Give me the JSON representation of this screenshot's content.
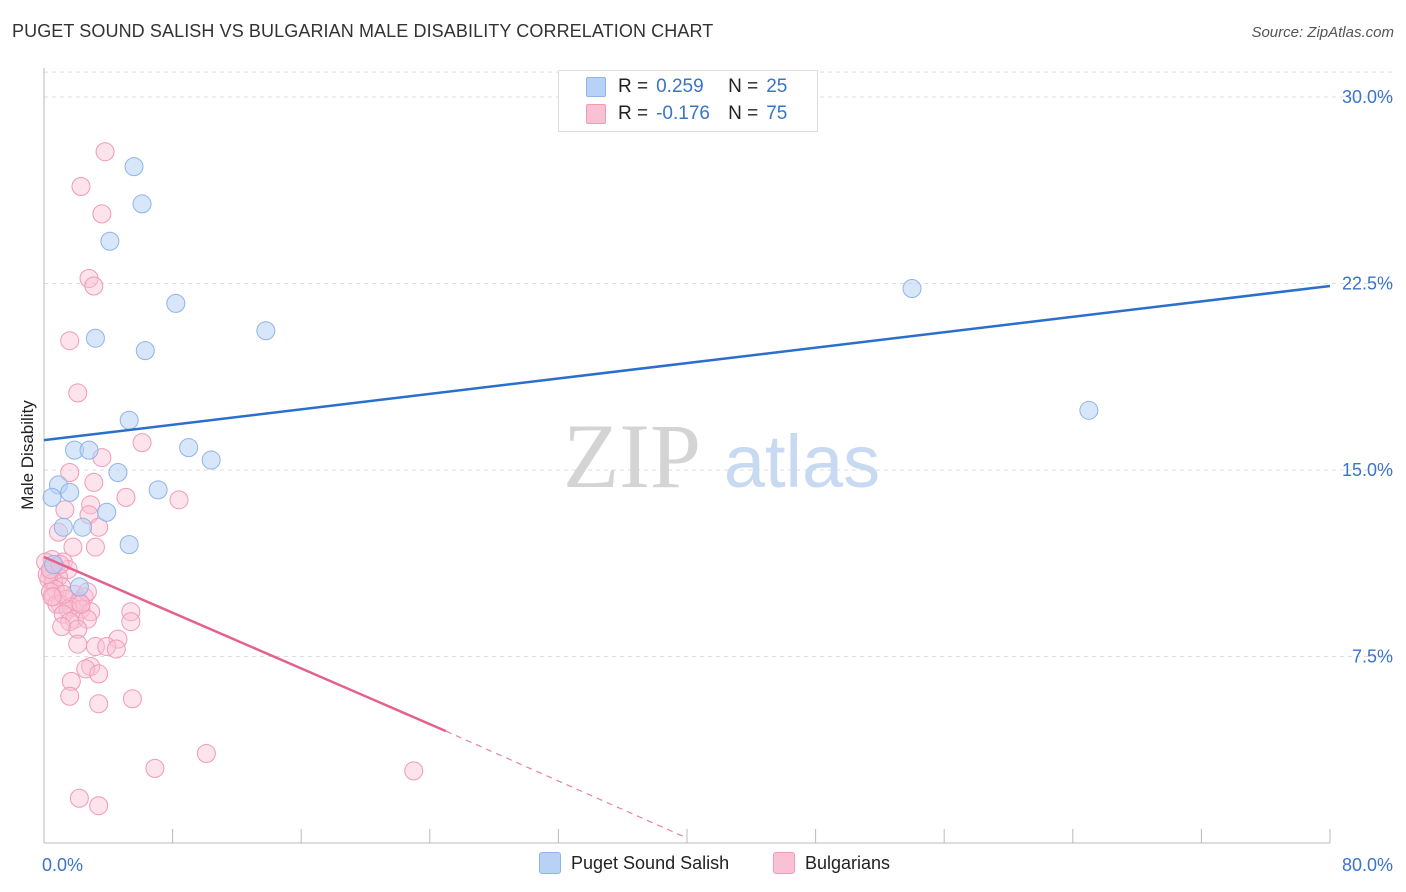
{
  "title": "PUGET SOUND SALISH VS BULGARIAN MALE DISABILITY CORRELATION CHART",
  "source": "Source: ZipAtlas.com",
  "watermark": {
    "zip": "ZIP",
    "atlas": "atlas"
  },
  "legend": {
    "rows": [
      {
        "r_label": "R =",
        "r_value": "0.259",
        "n_label": "N =",
        "n_value": "25"
      },
      {
        "r_label": "R =",
        "r_value": "-0.176",
        "n_label": "N =",
        "n_value": "75"
      }
    ]
  },
  "bottom_legend": [
    "Puget Sound Salish",
    "Bulgarians"
  ],
  "colors": {
    "blue_fill": "#b8d2f5",
    "blue_stroke": "#8fb4e6",
    "blue_line": "#2b6fcd",
    "pink_fill": "#f9c2d4",
    "pink_stroke": "#f09ab6",
    "pink_line": "#e4618e",
    "tick_text": "#3a74c9",
    "grid": "#dddddd"
  },
  "chart_data": {
    "type": "scatter",
    "title": "PUGET SOUND SALISH VS BULGARIAN MALE DISABILITY CORRELATION CHART",
    "xlabel": "",
    "ylabel": "Male Disability",
    "xlim": [
      0,
      80
    ],
    "ylim": [
      0,
      31
    ],
    "x_tick_labels": [
      "0.0%",
      "80.0%"
    ],
    "y_ticks": [
      7.5,
      15.0,
      22.5,
      30.0
    ],
    "y_tick_labels": [
      "7.5%",
      "15.0%",
      "22.5%",
      "30.0%"
    ],
    "series": [
      {
        "name": "Puget Sound Salish",
        "R": 0.259,
        "N": 25,
        "trend": {
          "x": [
            0,
            80
          ],
          "y": [
            16.2,
            22.4
          ]
        },
        "points": [
          [
            5.6,
            27.2
          ],
          [
            6.1,
            25.7
          ],
          [
            4.1,
            24.2
          ],
          [
            8.2,
            21.7
          ],
          [
            3.2,
            20.3
          ],
          [
            6.3,
            19.8
          ],
          [
            13.8,
            20.6
          ],
          [
            5.3,
            17.0
          ],
          [
            1.9,
            15.8
          ],
          [
            2.8,
            15.8
          ],
          [
            9.0,
            15.9
          ],
          [
            10.4,
            15.4
          ],
          [
            4.6,
            14.9
          ],
          [
            0.9,
            14.4
          ],
          [
            7.1,
            14.2
          ],
          [
            1.6,
            14.1
          ],
          [
            0.5,
            13.9
          ],
          [
            3.9,
            13.3
          ],
          [
            1.2,
            12.7
          ],
          [
            2.4,
            12.7
          ],
          [
            5.3,
            12.0
          ],
          [
            0.6,
            11.2
          ],
          [
            2.2,
            10.3
          ],
          [
            54.0,
            22.3
          ],
          [
            65.0,
            17.4
          ]
        ]
      },
      {
        "name": "Bulgarians",
        "R": -0.176,
        "N": 75,
        "trend": {
          "x": [
            0,
            25
          ],
          "y": [
            11.5,
            4.5
          ]
        },
        "trend_dashed": {
          "x": [
            25,
            40
          ],
          "y": [
            4.5,
            0.2
          ]
        },
        "points": [
          [
            3.8,
            27.8
          ],
          [
            2.3,
            26.4
          ],
          [
            3.6,
            25.3
          ],
          [
            2.8,
            22.7
          ],
          [
            3.1,
            22.4
          ],
          [
            1.6,
            20.2
          ],
          [
            2.1,
            18.1
          ],
          [
            6.1,
            16.1
          ],
          [
            3.6,
            15.5
          ],
          [
            1.6,
            14.9
          ],
          [
            3.1,
            14.5
          ],
          [
            5.1,
            13.9
          ],
          [
            8.4,
            13.8
          ],
          [
            2.9,
            13.6
          ],
          [
            1.3,
            13.4
          ],
          [
            2.8,
            13.2
          ],
          [
            3.4,
            12.7
          ],
          [
            0.9,
            12.5
          ],
          [
            1.8,
            11.9
          ],
          [
            3.2,
            11.9
          ],
          [
            0.5,
            11.4
          ],
          [
            1.2,
            11.3
          ],
          [
            0.7,
            11.1
          ],
          [
            1.5,
            11.0
          ],
          [
            0.4,
            10.9
          ],
          [
            0.9,
            10.7
          ],
          [
            0.3,
            10.6
          ],
          [
            0.6,
            10.5
          ],
          [
            1.1,
            10.3
          ],
          [
            0.7,
            10.2
          ],
          [
            0.4,
            10.1
          ],
          [
            1.9,
            10.0
          ],
          [
            2.5,
            9.9
          ],
          [
            0.6,
            9.9
          ],
          [
            1.4,
            9.8
          ],
          [
            2.2,
            9.7
          ],
          [
            1.0,
            9.6
          ],
          [
            0.8,
            9.6
          ],
          [
            1.7,
            9.5
          ],
          [
            2.3,
            9.4
          ],
          [
            1.5,
            9.4
          ],
          [
            2.9,
            9.3
          ],
          [
            5.4,
            9.3
          ],
          [
            1.2,
            9.2
          ],
          [
            1.9,
            9.0
          ],
          [
            2.7,
            9.0
          ],
          [
            1.6,
            8.9
          ],
          [
            5.4,
            8.9
          ],
          [
            1.1,
            8.7
          ],
          [
            2.1,
            8.6
          ],
          [
            4.6,
            8.2
          ],
          [
            2.1,
            8.0
          ],
          [
            3.2,
            7.9
          ],
          [
            3.9,
            7.9
          ],
          [
            4.5,
            7.8
          ],
          [
            2.9,
            7.1
          ],
          [
            2.6,
            7.0
          ],
          [
            3.4,
            6.8
          ],
          [
            1.7,
            6.5
          ],
          [
            1.6,
            5.9
          ],
          [
            5.5,
            5.8
          ],
          [
            3.4,
            5.6
          ],
          [
            10.1,
            3.6
          ],
          [
            6.9,
            3.0
          ],
          [
            23.0,
            2.9
          ],
          [
            2.2,
            1.8
          ],
          [
            3.4,
            1.5
          ],
          [
            0.1,
            11.3
          ],
          [
            1.2,
            10.0
          ],
          [
            2.7,
            10.1
          ],
          [
            0.2,
            10.8
          ],
          [
            0.4,
            11.0
          ],
          [
            1.0,
            11.2
          ],
          [
            0.5,
            9.9
          ],
          [
            2.3,
            9.6
          ]
        ]
      }
    ]
  }
}
